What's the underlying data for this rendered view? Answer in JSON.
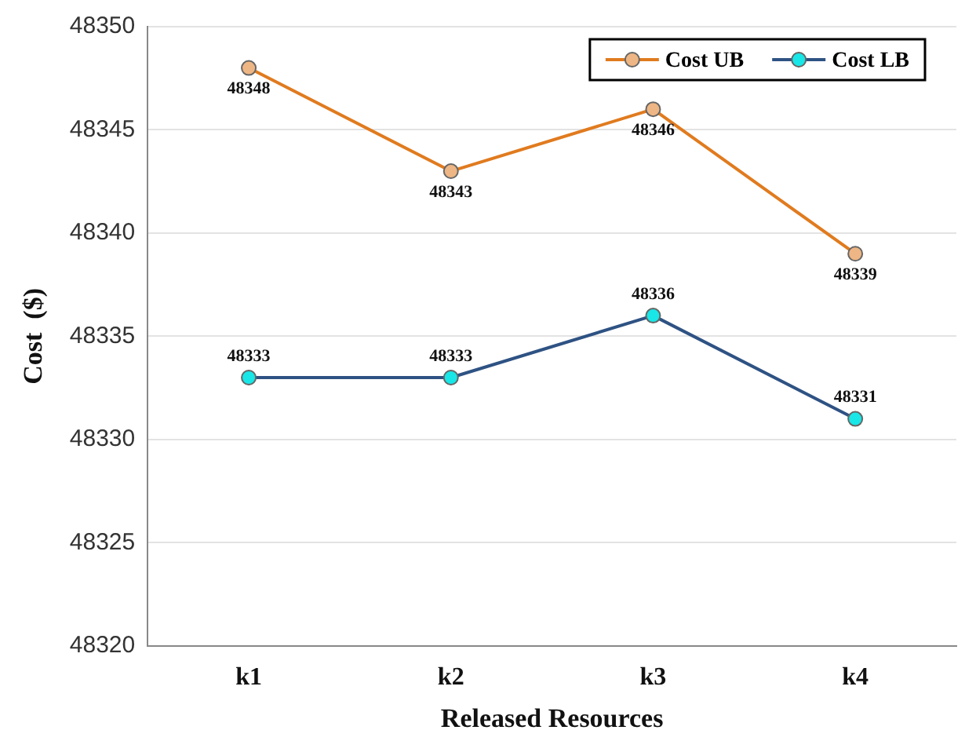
{
  "chart_data": {
    "type": "line",
    "xlabel": "Released Resources",
    "ylabel": "Cost  ($)",
    "categories": [
      "k1",
      "k2",
      "k3",
      "k4"
    ],
    "series": [
      {
        "name": "Cost UB",
        "color": "#e07b1f",
        "values": [
          48348,
          48343,
          48346,
          48339
        ]
      },
      {
        "name": "Cost LB",
        "color": "#2e5283",
        "values": [
          48333,
          48333,
          48336,
          48331
        ]
      }
    ],
    "ylim": [
      48320,
      48350
    ],
    "yticks": [
      48320,
      48325,
      48330,
      48335,
      48340,
      48345,
      48350
    ],
    "grid": "y",
    "legend": "top right",
    "marker": "circle",
    "line_style": "solid",
    "data_labels": true
  }
}
